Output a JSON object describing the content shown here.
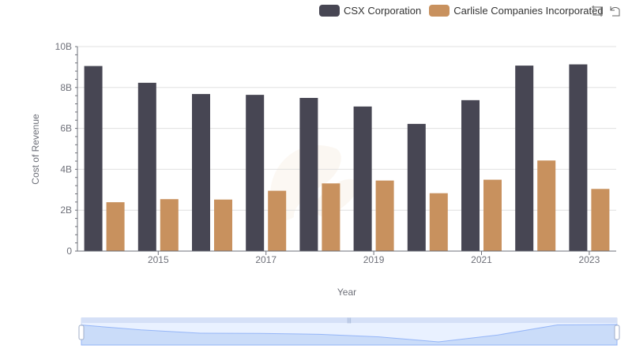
{
  "chart_data": {
    "type": "bar",
    "title": "",
    "xlabel": "Year",
    "ylabel": "Cost of Revenue",
    "categories": [
      "2014",
      "2015",
      "2016",
      "2017",
      "2018",
      "2019",
      "2020",
      "2021",
      "2022",
      "2023"
    ],
    "x_tick_labels": [
      "2015",
      "2017",
      "2019",
      "2021",
      "2023"
    ],
    "y_tick_labels": [
      "0",
      "2B",
      "4B",
      "6B",
      "8B",
      "10B"
    ],
    "ylim": [
      0,
      10000000000
    ],
    "grid": true,
    "legend_position": "top-right",
    "series": [
      {
        "name": "CSX Corporation",
        "color": "#474653",
        "values": [
          9050000000,
          8230000000,
          7680000000,
          7640000000,
          7490000000,
          7070000000,
          6220000000,
          7380000000,
          9070000000,
          9130000000
        ]
      },
      {
        "name": "Carlisle Companies Incorporated",
        "color": "#c8915e",
        "values": [
          2390000000,
          2540000000,
          2520000000,
          2950000000,
          3310000000,
          3450000000,
          2830000000,
          3490000000,
          4430000000,
          3040000000
        ]
      }
    ]
  },
  "toolbox": {
    "zoom_icon": "zoom-icon",
    "restore_icon": "restore-icon"
  }
}
